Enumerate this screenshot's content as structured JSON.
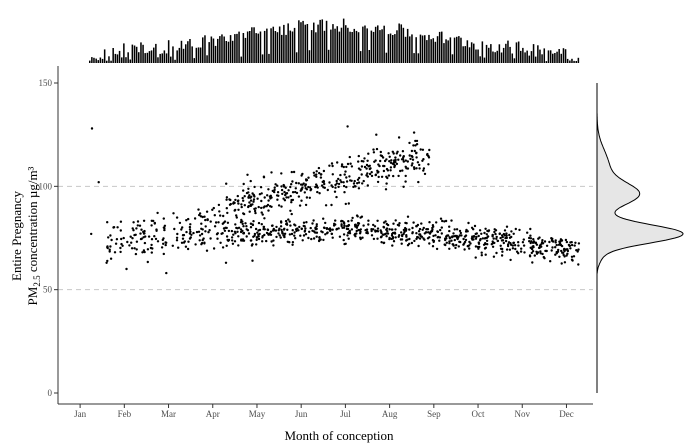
{
  "chart_data": {
    "type": "scatter",
    "xlabel": "Month of conception",
    "ylabel_line1": "Entire Pregnancy",
    "ylabel_line2_prefix": "PM",
    "ylabel_line2_sub": "2.5",
    "ylabel_line2_suffix": " concentration µg/m³",
    "x_ticks": [
      "Jan",
      "Feb",
      "Mar",
      "Apr",
      "May",
      "Jun",
      "Jul",
      "Aug",
      "Sep",
      "Oct",
      "Nov",
      "Dec"
    ],
    "y_ticks": [
      0,
      50,
      100,
      150
    ],
    "xlim_month": [
      0.5,
      12.6
    ],
    "ylim": [
      0,
      150
    ],
    "grid": "dashed horizontal at 50 and 100",
    "marginal_top": "histogram of conception dates (counts per day)",
    "marginal_right": "density of concentration (bimodal, peaks near 77 and 96)",
    "colors": {
      "points": "#000000",
      "grid": "#c8c8c8",
      "density_fill": "#e6e6e6",
      "bars": "#000000"
    },
    "series": [
      {
        "points": [
          [
            1.25,
            77
          ],
          [
            1.27,
            128
          ],
          [
            1.42,
            102
          ],
          [
            1.6,
            63
          ],
          [
            1.7,
            65
          ],
          [
            8.58,
            122
          ],
          [
            8.62,
            122
          ],
          [
            8.8,
            106
          ],
          [
            7.05,
            129
          ],
          [
            7.7,
            125
          ],
          [
            2.95,
            58
          ],
          [
            2.05,
            60
          ],
          [
            4.3,
            63
          ],
          [
            4.9,
            64
          ],
          [
            8.3,
            117
          ],
          [
            8.45,
            121
          ]
        ],
        "clusters": [
          {
            "from": 1.6,
            "to": 4.3,
            "y0": 72,
            "y1": 82,
            "spread": 5,
            "n": 180
          },
          {
            "from": 4.3,
            "to": 8.9,
            "y0": 89,
            "y1": 115,
            "spread": 4.5,
            "n": 380
          },
          {
            "from": 4.3,
            "to": 12.3,
            "y0": 77,
            "y1": 70,
            "spread": 3.2,
            "n": 720,
            "bulge": 4
          }
        ]
      }
    ]
  }
}
